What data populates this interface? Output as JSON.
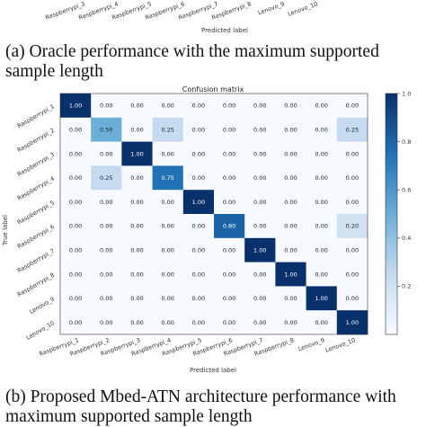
{
  "figure_a": {
    "x_tick_labels": [
      "Raspberrypi_3",
      "Raspberrypi_4",
      "Raspberrypi_5",
      "Raspberrypi_6",
      "Raspberrypi_7",
      "Raspberrypi_8",
      "Lenovo_9",
      "Lenovo_10"
    ],
    "xlabel": "Predicted label",
    "caption": "(a) Oracle performance with the maximum supported sample length"
  },
  "figure_b": {
    "caption": "(b) Proposed Mbed-ATN architecture performance with maximum supported sample length"
  },
  "chart_data": {
    "type": "heatmap",
    "title": "Confusion matrix",
    "xlabel": "Predicted label",
    "ylabel": "True label",
    "row_labels": [
      "Raspberrypi_1",
      "Raspberrypi_2",
      "Raspberrypi_3",
      "Raspberrypi_4",
      "Raspberrypi_5",
      "Raspberrypi_6",
      "Raspberrypi_7",
      "Raspberrypi_8",
      "Lenovo_9",
      "Lenovo_10"
    ],
    "col_labels": [
      "Raspberrypi_1",
      "Raspberrypi_2",
      "Raspberrypi_3",
      "Raspberrypi_4",
      "Raspberrypi_5",
      "Raspberrypi_6",
      "Raspberrypi_7",
      "Raspberrypi_8",
      "Lenovo_9",
      "Lenovo_10"
    ],
    "cells": [
      [
        "1.00",
        "0.00",
        "0.00",
        "0.00",
        "0.00",
        "0.00",
        "0.00",
        "0.00",
        "0.00",
        "0.00"
      ],
      [
        "0.00",
        "0.50",
        "0.00",
        "0.25",
        "0.00",
        "0.00",
        "0.00",
        "0.00",
        "0.00",
        "0.25"
      ],
      [
        "0.00",
        "0.00",
        "1.00",
        "0.00",
        "0.00",
        "0.00",
        "0.00",
        "0.00",
        "0.00",
        "0.00"
      ],
      [
        "0.00",
        "0.25",
        "0.00",
        "0.75",
        "0.00",
        "0.00",
        "0.00",
        "0.00",
        "0.00",
        "0.00"
      ],
      [
        "0.00",
        "0.00",
        "0.00",
        "0.00",
        "1.00",
        "0.00",
        "0.00",
        "0.00",
        "0.00",
        "0.00"
      ],
      [
        "0.00",
        "0.00",
        "0.00",
        "0.00",
        "0.00",
        "0.80",
        "0.00",
        "0.00",
        "0.00",
        "0.20"
      ],
      [
        "0.00",
        "0.00",
        "0.00",
        "0.00",
        "0.00",
        "0.00",
        "1.00",
        "0.00",
        "0.00",
        "0.00"
      ],
      [
        "0.00",
        "0.00",
        "0.00",
        "0.00",
        "0.00",
        "0.00",
        "0.00",
        "1.00",
        "0.00",
        "0.00"
      ],
      [
        "0.00",
        "0.00",
        "0.00",
        "0.00",
        "0.00",
        "0.00",
        "0.00",
        "0.00",
        "1.00",
        "0.00"
      ],
      [
        "0.00",
        "0.00",
        "0.00",
        "0.00",
        "0.00",
        "0.00",
        "0.00",
        "0.00",
        "0.00",
        "1.00"
      ]
    ],
    "colorbar": {
      "range": [
        0,
        1.0
      ],
      "ticks": [
        "0.2",
        "0.4",
        "0.6",
        "0.8",
        "1.0"
      ]
    },
    "colormap": {
      "low": "#f7fbff",
      "high": "#08306b"
    }
  }
}
